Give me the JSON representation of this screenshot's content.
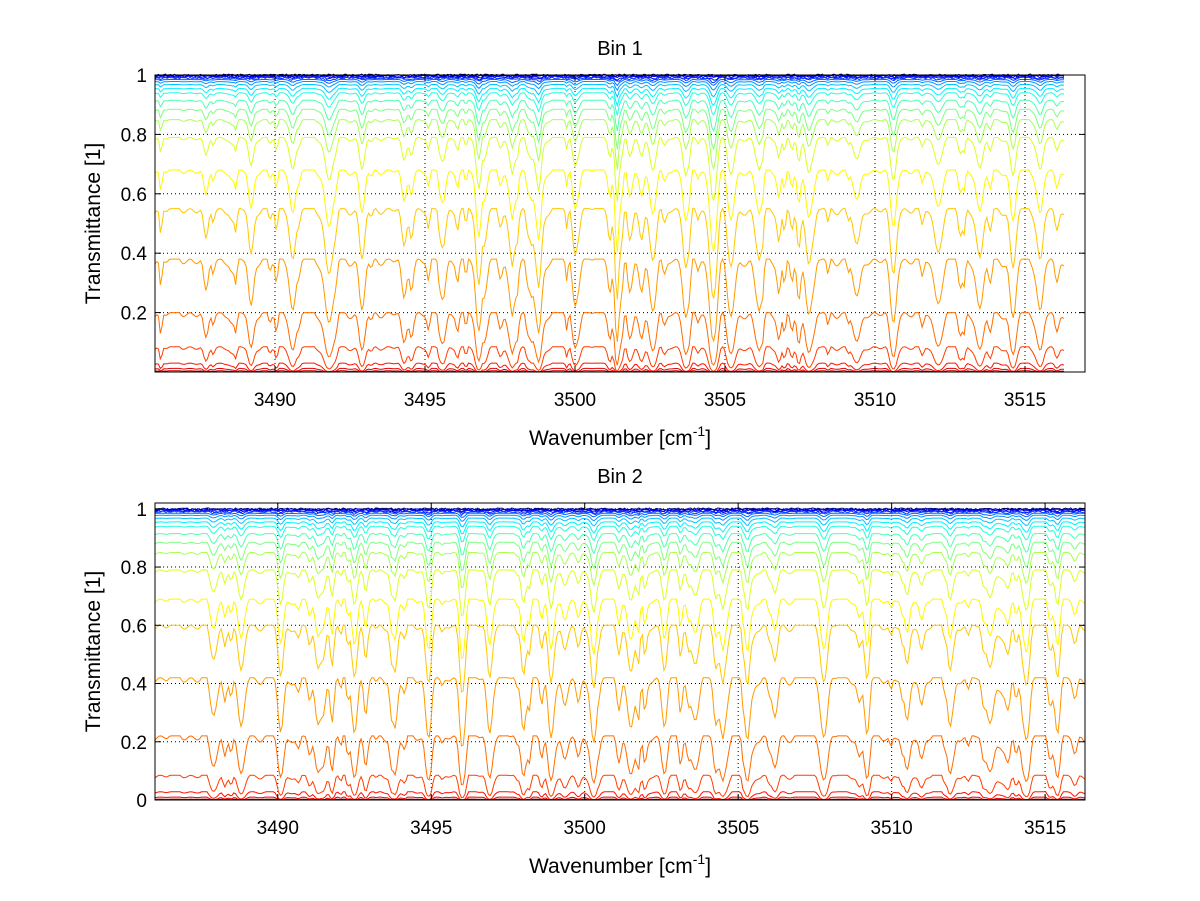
{
  "chart_data": [
    {
      "type": "line",
      "title": "Bin 1",
      "xlabel": "Wavenumber [cm",
      "xlabel_sup": "-1",
      "xlabel_close": "]",
      "ylabel": "Transmittance [1]",
      "xlim": [
        3486,
        3517
      ],
      "ylim": [
        0,
        1
      ],
      "xticks": [
        3490,
        3495,
        3500,
        3505,
        3510,
        3515
      ],
      "xtick_labels": [
        "3490",
        "3495",
        "3500",
        "3505",
        "3510",
        "3515"
      ],
      "yticks": [
        0.2,
        0.4,
        0.6,
        0.8,
        1
      ],
      "ytick_labels": [
        "0.2",
        "0.4",
        "0.6",
        "0.8",
        "1"
      ],
      "x_range": [
        3486,
        3516.3
      ],
      "grid": true,
      "legend": "none",
      "series_colormap": "jet",
      "series_baseline": [
        1.0,
        0.998,
        0.996,
        0.993,
        0.99,
        0.985,
        0.978,
        0.968,
        0.955,
        0.94,
        0.915,
        0.885,
        0.85,
        0.79,
        0.68,
        0.55,
        0.38,
        0.2,
        0.085,
        0.03,
        0.012,
        0.004
      ],
      "line_features": [
        3487.7,
        3489.2,
        3490.6,
        3491.8,
        3492.9,
        3494.3,
        3495.6,
        3496.8,
        3497.9,
        3498.8,
        3500.0,
        3501.4,
        3502.6,
        3503.7,
        3504.6,
        3505.2,
        3506.1,
        3507.8,
        3509.4,
        3510.6,
        3512.1,
        3513.5,
        3514.6,
        3515.5
      ]
    },
    {
      "type": "line",
      "title": "Bin 2",
      "xlabel": "Wavenumber [cm",
      "xlabel_sup": "-1",
      "xlabel_close": "]",
      "ylabel": "Transmittance [1]",
      "xlim": [
        3486,
        3516.3
      ],
      "ylim": [
        0,
        1.02
      ],
      "xticks": [
        3490,
        3495,
        3500,
        3505,
        3510,
        3515
      ],
      "xtick_labels": [
        "3490",
        "3495",
        "3500",
        "3505",
        "3510",
        "3515"
      ],
      "yticks": [
        0,
        0.2,
        0.4,
        0.6,
        0.8,
        1
      ],
      "ytick_labels": [
        "0",
        "0.2",
        "0.4",
        "0.6",
        "0.8",
        "1"
      ],
      "x_range": [
        3486,
        3516.3
      ],
      "grid": true,
      "legend": "none",
      "series_colormap": "jet",
      "series_baseline": [
        1.0,
        0.998,
        0.996,
        0.993,
        0.99,
        0.985,
        0.978,
        0.968,
        0.955,
        0.94,
        0.915,
        0.885,
        0.85,
        0.79,
        0.69,
        0.6,
        0.42,
        0.22,
        0.085,
        0.028,
        0.01,
        0.003
      ],
      "line_features": [
        3487.9,
        3488.8,
        3490.1,
        3491.3,
        3492.5,
        3493.8,
        3494.9,
        3496.0,
        3496.9,
        3498.0,
        3498.9,
        3500.3,
        3501.5,
        3502.6,
        3503.6,
        3504.5,
        3505.3,
        3506.2,
        3507.8,
        3509.2,
        3510.5,
        3511.9,
        3513.2,
        3514.4,
        3515.4
      ]
    }
  ]
}
